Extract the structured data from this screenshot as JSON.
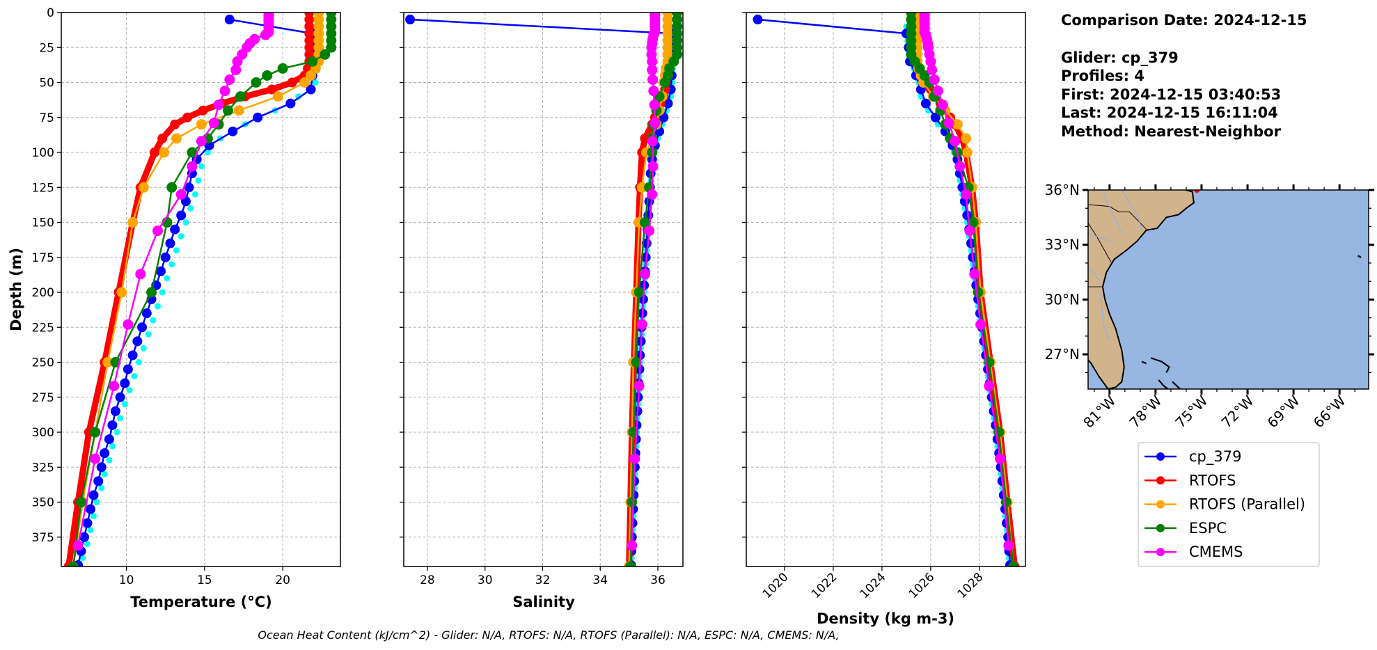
{
  "info": {
    "lines": [
      "Comparison Date: 2024-12-15",
      "",
      "Glider: cp_379",
      "Profiles: 4",
      "First: 2024-12-15 03:40:53",
      "Last: 2024-12-15 16:11:04",
      "Method: Nearest-Neighbor"
    ]
  },
  "footer": {
    "ohc_text": "Ocean Heat Content (kJ/cm^2) - Glider: N/A,  RTOFS: N/A,  RTOFS (Parallel): N/A,  ESPC: N/A,  CMEMS: N/A,"
  },
  "legend": {
    "placement": "below-map",
    "entries": [
      {
        "label": "cp_379",
        "color": "#0000ff"
      },
      {
        "label": "RTOFS",
        "color": "#ff0000"
      },
      {
        "label": "RTOFS (Parallel)",
        "color": "#ffa500"
      },
      {
        "label": "ESPC",
        "color": "#008000"
      },
      {
        "label": "CMEMS",
        "color": "#ff00ff"
      }
    ]
  },
  "depths": {
    "glider": [
      5,
      15,
      25,
      35,
      45,
      55,
      65,
      75,
      85,
      95,
      105,
      115,
      125,
      135,
      145,
      155,
      165,
      175,
      185,
      195,
      205,
      215,
      225,
      235,
      245,
      255,
      265,
      275,
      285,
      295,
      305,
      315,
      325,
      335,
      345,
      355,
      365,
      375,
      385,
      395
    ],
    "profiles": [
      10,
      20,
      30,
      40,
      50,
      60,
      70,
      80,
      90,
      100,
      110,
      120,
      130,
      140,
      150,
      160,
      170,
      180,
      190,
      200,
      210,
      220,
      230,
      240,
      250,
      260,
      270,
      280,
      290,
      300,
      310,
      320,
      330,
      340,
      350,
      360,
      370,
      380,
      390
    ],
    "rtofs": [
      0,
      5,
      10,
      15,
      20,
      25,
      30,
      35,
      40,
      45,
      50,
      55,
      60,
      65,
      70,
      75,
      80,
      90,
      100,
      125,
      150,
      200,
      250,
      300,
      350,
      396
    ],
    "rtofs_parallel": [
      0,
      5,
      10,
      15,
      20,
      25,
      30,
      35,
      40,
      45,
      50,
      60,
      70,
      80,
      90,
      100,
      125,
      150,
      200,
      250,
      300,
      350,
      396
    ],
    "espc": [
      0,
      5,
      10,
      15,
      20,
      25,
      30,
      35,
      40,
      45,
      50,
      60,
      70,
      80,
      90,
      100,
      125,
      150,
      200,
      250,
      300,
      350,
      396
    ],
    "cmems": [
      0,
      2,
      4,
      6,
      8,
      10,
      12,
      14,
      16,
      19,
      22,
      25,
      30,
      35,
      41,
      48,
      56,
      66,
      79,
      92,
      110,
      130,
      156,
      187,
      223,
      267,
      319,
      381
    ]
  },
  "chart_data": [
    {
      "type": "line",
      "xlabel": "Temperature (°C)",
      "ylabel": "Depth (m)",
      "xlim": [
        5.83,
        23.69
      ],
      "ylim": [
        396,
        0
      ],
      "xticks": [
        10,
        15,
        20
      ],
      "yticks": [
        0,
        25,
        50,
        75,
        100,
        125,
        150,
        175,
        200,
        225,
        250,
        275,
        300,
        325,
        350,
        375
      ],
      "grid": true,
      "series": [
        {
          "key": "profiles",
          "name": "",
          "color": "#00ffff",
          "markers_only": true,
          "values": [
            22.2,
            22.3,
            22.3,
            22.2,
            22.1,
            21.0,
            19.5,
            17.6,
            16.0,
            15.2,
            14.8,
            14.6,
            14.4,
            14.1,
            13.8,
            13.5,
            13.2,
            12.9,
            12.6,
            12.3,
            12.0,
            11.7,
            11.4,
            11.1,
            10.8,
            10.5,
            10.2,
            9.9,
            9.6,
            9.4,
            9.1,
            8.9,
            8.6,
            8.4,
            8.1,
            7.9,
            7.7,
            7.5,
            7.2
          ]
        },
        {
          "key": "glider",
          "name": "cp_379",
          "color": "#0000ff",
          "values": [
            16.6,
            21.9,
            22.0,
            22.0,
            21.9,
            21.8,
            20.5,
            18.4,
            16.8,
            15.3,
            14.5,
            14.2,
            14.0,
            13.8,
            13.5,
            13.1,
            12.8,
            12.5,
            12.2,
            11.9,
            11.6,
            11.3,
            11.0,
            10.7,
            10.4,
            10.1,
            9.9,
            9.6,
            9.3,
            9.1,
            8.9,
            8.6,
            8.4,
            8.2,
            7.9,
            7.7,
            7.5,
            7.3,
            7.1,
            6.9
          ]
        },
        {
          "key": "rtofs",
          "name": "RTOFS",
          "color": "#ff0000",
          "values": [
            21.7,
            21.7,
            21.7,
            21.7,
            21.7,
            21.7,
            21.7,
            21.7,
            21.6,
            21.4,
            20.6,
            19.3,
            17.6,
            16.1,
            14.9,
            13.9,
            13.1,
            12.3,
            11.8,
            10.9,
            10.4,
            9.5,
            8.6,
            7.6,
            6.9,
            6.3
          ]
        },
        {
          "key": "rtofs_parallel",
          "name": "RTOFS (Parallel)",
          "color": "#ffa500",
          "values": [
            22.3,
            22.3,
            22.3,
            22.3,
            22.3,
            22.3,
            22.3,
            22.3,
            22.1,
            21.8,
            21.4,
            19.7,
            17.2,
            14.8,
            13.2,
            12.4,
            11.1,
            10.4,
            9.7,
            8.8,
            8.0,
            7.2,
            6.6
          ]
        },
        {
          "key": "espc",
          "name": "ESPC",
          "color": "#008000",
          "values": [
            23.1,
            23.1,
            23.1,
            23.1,
            23.1,
            23.1,
            22.7,
            21.9,
            20.0,
            19.0,
            18.3,
            17.3,
            16.5,
            15.9,
            15.2,
            14.2,
            12.9,
            12.6,
            11.6,
            9.3,
            8.0,
            7.1,
            6.6
          ]
        },
        {
          "key": "cmems",
          "name": "CMEMS",
          "color": "#ff00ff",
          "values": [
            19.1,
            19.1,
            19.1,
            19.1,
            19.1,
            19.1,
            19.1,
            19.1,
            18.9,
            18.2,
            17.9,
            17.7,
            17.4,
            17.1,
            17.0,
            16.6,
            16.3,
            15.9,
            15.6,
            14.8,
            14.2,
            13.5,
            12.0,
            10.9,
            10.1,
            9.2,
            8.0,
            6.9
          ]
        }
      ]
    },
    {
      "type": "line",
      "xlabel": "Salinity",
      "ylabel": "",
      "xlim": [
        27.18,
        36.87
      ],
      "ylim": [
        396,
        0
      ],
      "xticks": [
        28,
        30,
        32,
        34,
        36
      ],
      "yticks": [
        0,
        25,
        50,
        75,
        100,
        125,
        150,
        175,
        200,
        225,
        250,
        275,
        300,
        325,
        350,
        375
      ],
      "grid": true,
      "series": [
        {
          "key": "profiles",
          "name": "",
          "color": "#00ffff",
          "markers_only": true,
          "values": [
            36.55,
            36.55,
            36.55,
            36.52,
            36.5,
            36.45,
            36.3,
            36.15,
            36.0,
            35.88,
            35.8,
            35.76,
            35.73,
            35.7,
            35.67,
            35.64,
            35.61,
            35.58,
            35.55,
            35.52,
            35.49,
            35.46,
            35.44,
            35.41,
            35.38,
            35.36,
            35.34,
            35.31,
            35.29,
            35.27,
            35.25,
            35.23,
            35.21,
            35.19,
            35.17,
            35.15,
            35.13,
            35.11,
            35.09
          ]
        },
        {
          "key": "glider",
          "name": "cp_379",
          "color": "#0000ff",
          "values": [
            27.4,
            36.5,
            36.5,
            36.5,
            36.48,
            36.45,
            36.35,
            36.2,
            36.05,
            35.9,
            35.8,
            35.75,
            35.73,
            35.7,
            35.67,
            35.64,
            35.61,
            35.58,
            35.55,
            35.52,
            35.49,
            35.46,
            35.43,
            35.41,
            35.38,
            35.36,
            35.33,
            35.31,
            35.29,
            35.26,
            35.24,
            35.22,
            35.2,
            35.18,
            35.16,
            35.14,
            35.12,
            35.1,
            35.08,
            35.07
          ]
        },
        {
          "key": "rtofs",
          "name": "RTOFS",
          "color": "#ff0000",
          "values": [
            36.35,
            36.35,
            36.35,
            36.35,
            36.35,
            36.35,
            36.35,
            36.35,
            36.33,
            36.3,
            36.28,
            36.25,
            36.2,
            36.1,
            36.0,
            35.9,
            35.8,
            35.55,
            35.45,
            35.38,
            35.33,
            35.25,
            35.17,
            35.1,
            35.05,
            35.0
          ]
        },
        {
          "key": "rtofs_parallel",
          "name": "RTOFS (Parallel)",
          "color": "#ffa500",
          "values": [
            36.34,
            36.34,
            36.34,
            36.34,
            36.34,
            36.34,
            36.34,
            36.34,
            36.28,
            36.25,
            36.2,
            36.15,
            36.05,
            35.95,
            35.8,
            35.6,
            35.45,
            35.35,
            35.25,
            35.15,
            35.1,
            35.05,
            35.0
          ]
        },
        {
          "key": "espc",
          "name": "ESPC",
          "color": "#008000",
          "values": [
            36.67,
            36.67,
            36.67,
            36.67,
            36.67,
            36.67,
            36.67,
            36.55,
            36.4,
            36.35,
            36.25,
            36.05,
            35.95,
            35.85,
            35.8,
            35.8,
            35.7,
            35.55,
            35.35,
            35.25,
            35.15,
            35.1,
            35.05
          ]
        },
        {
          "key": "cmems",
          "name": "CMEMS",
          "color": "#ff00ff",
          "values": [
            35.9,
            35.9,
            35.9,
            35.9,
            35.9,
            35.9,
            35.9,
            35.9,
            35.85,
            35.82,
            35.8,
            35.78,
            35.78,
            35.8,
            35.8,
            35.82,
            35.85,
            35.88,
            35.9,
            35.82,
            35.83,
            35.8,
            35.7,
            35.55,
            35.45,
            35.35,
            35.2,
            35.1
          ]
        }
      ]
    },
    {
      "type": "line",
      "xlabel": "Density (kg m-3)",
      "ylabel": "",
      "xlim": [
        1018.43,
        1029.89
      ],
      "ylim": [
        396,
        0
      ],
      "xticks": [
        1020,
        1022,
        1024,
        1026,
        1028
      ],
      "yticks": [
        0,
        25,
        50,
        75,
        100,
        125,
        150,
        175,
        200,
        225,
        250,
        275,
        300,
        325,
        350,
        375
      ],
      "grid": true,
      "series": [
        {
          "key": "profiles",
          "name": "",
          "color": "#00ffff",
          "markers_only": true,
          "values": [
            1025.0,
            1025.05,
            1025.1,
            1025.3,
            1025.5,
            1025.6,
            1025.9,
            1026.3,
            1026.7,
            1026.95,
            1027.1,
            1027.2,
            1027.3,
            1027.4,
            1027.5,
            1027.58,
            1027.66,
            1027.73,
            1027.8,
            1027.87,
            1027.95,
            1028.03,
            1028.11,
            1028.19,
            1028.27,
            1028.35,
            1028.43,
            1028.51,
            1028.59,
            1028.67,
            1028.74,
            1028.81,
            1028.88,
            1028.94,
            1029.0,
            1029.06,
            1029.12,
            1029.18,
            1029.22
          ]
        },
        {
          "key": "glider",
          "name": "cp_379",
          "color": "#0000ff",
          "values": [
            1018.9,
            1025.0,
            1025.1,
            1025.15,
            1025.4,
            1025.6,
            1025.8,
            1026.2,
            1026.6,
            1026.9,
            1027.1,
            1027.2,
            1027.3,
            1027.4,
            1027.5,
            1027.58,
            1027.66,
            1027.73,
            1027.8,
            1027.87,
            1027.95,
            1028.03,
            1028.11,
            1028.19,
            1028.27,
            1028.35,
            1028.43,
            1028.51,
            1028.59,
            1028.67,
            1028.74,
            1028.81,
            1028.88,
            1028.94,
            1029.0,
            1029.06,
            1029.12,
            1029.18,
            1029.22,
            1029.26
          ]
        },
        {
          "key": "rtofs",
          "name": "RTOFS",
          "color": "#ff0000",
          "values": [
            1025.4,
            1025.4,
            1025.4,
            1025.4,
            1025.4,
            1025.4,
            1025.4,
            1025.4,
            1025.5,
            1025.6,
            1025.8,
            1026.0,
            1026.2,
            1026.4,
            1026.6,
            1026.8,
            1027.0,
            1027.3,
            1027.45,
            1027.7,
            1027.85,
            1028.05,
            1028.45,
            1028.85,
            1029.15,
            1029.45
          ]
        },
        {
          "key": "rtofs_parallel",
          "name": "RTOFS (Parallel)",
          "color": "#ffa500",
          "values": [
            1025.45,
            1025.45,
            1025.45,
            1025.45,
            1025.45,
            1025.45,
            1025.45,
            1025.45,
            1025.5,
            1025.6,
            1025.7,
            1026.1,
            1026.6,
            1027.1,
            1027.45,
            1027.5,
            1027.7,
            1027.85,
            1028.05,
            1028.45,
            1028.85,
            1029.15,
            1029.4
          ]
        },
        {
          "key": "espc",
          "name": "ESPC",
          "color": "#008000",
          "values": [
            1025.2,
            1025.2,
            1025.2,
            1025.2,
            1025.2,
            1025.2,
            1025.2,
            1025.35,
            1025.55,
            1025.75,
            1025.95,
            1026.15,
            1026.4,
            1026.6,
            1026.8,
            1027.1,
            1027.55,
            1027.75,
            1027.95,
            1028.4,
            1028.8,
            1029.1,
            1029.4
          ]
        },
        {
          "key": "cmems",
          "name": "CMEMS",
          "color": "#ff00ff",
          "values": [
            1025.75,
            1025.75,
            1025.75,
            1025.75,
            1025.75,
            1025.75,
            1025.75,
            1025.75,
            1025.8,
            1025.85,
            1025.88,
            1025.9,
            1025.95,
            1026.0,
            1026.05,
            1026.15,
            1026.3,
            1026.5,
            1026.75,
            1027.0,
            1027.2,
            1027.45,
            1027.6,
            1027.8,
            1028.05,
            1028.4,
            1028.85,
            1029.2
          ]
        }
      ]
    }
  ],
  "map": {
    "lon_range": [
      -82.4,
      -64.1
    ],
    "lat_range": [
      25.1,
      36.0
    ],
    "lat_ticks": [
      {
        "value": 36,
        "label": "36°N"
      },
      {
        "value": 33,
        "label": "33°N"
      },
      {
        "value": 30,
        "label": "30°N"
      },
      {
        "value": 27,
        "label": "27°N"
      }
    ],
    "lon_ticks": [
      {
        "value": -81,
        "label": "81°W"
      },
      {
        "value": -78,
        "label": "78°W"
      },
      {
        "value": -75,
        "label": "75°W"
      },
      {
        "value": -72,
        "label": "72°W"
      },
      {
        "value": -69,
        "label": "69°W"
      },
      {
        "value": -66,
        "label": "66°W"
      }
    ],
    "glider_position": {
      "lon": -75.3,
      "lat": 36.0
    },
    "colors": {
      "ocean": "#97b6e1",
      "land": "#d2b48c",
      "rivers": "#8fb0e0",
      "glider": "#ff0000"
    }
  }
}
